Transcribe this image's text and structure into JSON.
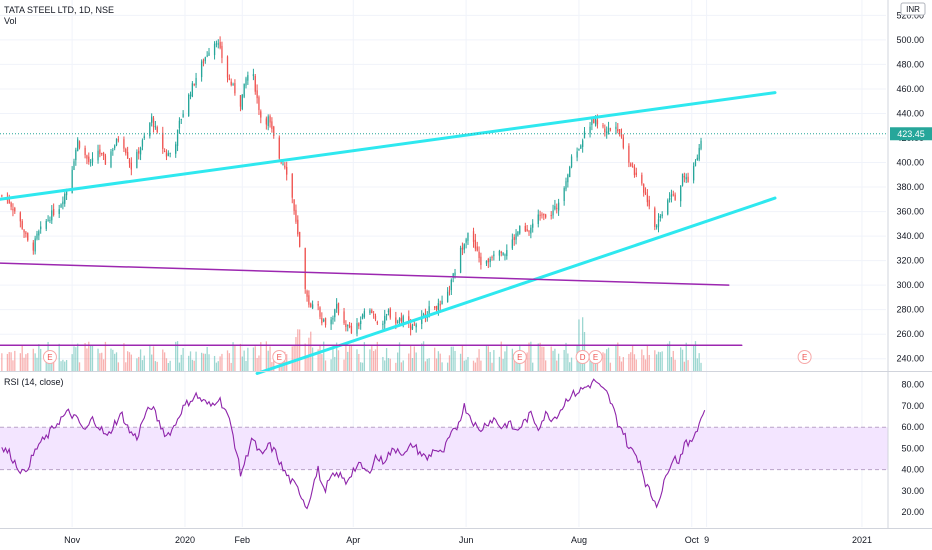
{
  "header": {
    "symbol_line": "TATA STEEL LTD, 1D, NSE",
    "vol_label": "Vol",
    "currency": "INR"
  },
  "rsi_panel": {
    "label": "RSI (14, close)"
  },
  "price_tag": "423.45",
  "earnings_marker": "E",
  "dividend_marker": "D",
  "colors": {
    "up": "#26a69a",
    "down": "#ef5350",
    "trendline_cyan": "#2ee8ef",
    "trendline_purple": "#9c27b0",
    "rsi_line": "#8e24aa",
    "rsi_band": "#f3e5ff",
    "grid": "#f0f3fa",
    "axis_text": "#131722"
  },
  "chart_data": [
    {
      "type": "candlestick",
      "title": "TATA STEEL LTD, 1D, NSE",
      "price_axis_ticks": [
        "520.00",
        "500.00",
        "480.00",
        "460.00",
        "440.00",
        "420.00",
        "400.00",
        "380.00",
        "360.00",
        "340.00",
        "320.00",
        "300.00",
        "280.00",
        "260.00",
        "240.00"
      ],
      "price_range": [
        230,
        526
      ],
      "time_axis_labels": [
        "Nov",
        "2020",
        "Feb",
        "Apr",
        "Jun",
        "Aug",
        "Oct",
        "9",
        "2021"
      ],
      "time_axis_anchor_days": [
        {
          "label": "Nov",
          "day": 0
        },
        {
          "label": "2020",
          "day": 61
        },
        {
          "label": "Feb",
          "day": 92
        },
        {
          "label": "Apr",
          "day": 152
        },
        {
          "label": "Jun",
          "day": 213
        },
        {
          "label": "Aug",
          "day": 274
        },
        {
          "label": "Oct",
          "day": 335
        },
        {
          "label": "9",
          "day": 343
        },
        {
          "label": "2021",
          "day": 427
        }
      ],
      "day_range": [
        -39,
        440
      ],
      "last_price": 423.45,
      "close_series": {
        "name": "close",
        "points": [
          [
            -38,
            373
          ],
          [
            -34,
            368
          ],
          [
            -30,
            358
          ],
          [
            -26,
            344
          ],
          [
            -22,
            326
          ],
          [
            -19,
            340
          ],
          [
            -15,
            350
          ],
          [
            -11,
            358
          ],
          [
            -7,
            364
          ],
          [
            -3,
            378
          ],
          [
            0,
            396
          ],
          [
            3,
            418
          ],
          [
            6,
            408
          ],
          [
            10,
            398
          ],
          [
            14,
            410
          ],
          [
            18,
            400
          ],
          [
            22,
            412
          ],
          [
            26,
            422
          ],
          [
            29,
            410
          ],
          [
            32,
            396
          ],
          [
            35,
            406
          ],
          [
            39,
            420
          ],
          [
            43,
            436
          ],
          [
            47,
            418
          ],
          [
            51,
            406
          ],
          [
            55,
            410
          ],
          [
            58,
            432
          ],
          [
            62,
            450
          ],
          [
            66,
            466
          ],
          [
            70,
            480
          ],
          [
            74,
            492
          ],
          [
            78,
            500
          ],
          [
            81,
            486
          ],
          [
            84,
            470
          ],
          [
            88,
            458
          ],
          [
            91,
            448
          ],
          [
            94,
            468
          ],
          [
            97,
            478
          ],
          [
            100,
            452
          ],
          [
            103,
            430
          ],
          [
            106,
            436
          ],
          [
            109,
            420
          ],
          [
            112,
            404
          ],
          [
            115,
            398
          ],
          [
            118,
            382
          ],
          [
            121,
            350
          ],
          [
            123,
            330
          ],
          [
            125,
            300
          ],
          [
            128,
            282
          ],
          [
            131,
            290
          ],
          [
            135,
            272
          ],
          [
            139,
            268
          ],
          [
            143,
            282
          ],
          [
            147,
            270
          ],
          [
            151,
            262
          ],
          [
            155,
            268
          ],
          [
            159,
            280
          ],
          [
            163,
            276
          ],
          [
            167,
            266
          ],
          [
            171,
            278
          ],
          [
            175,
            270
          ],
          [
            179,
            274
          ],
          [
            183,
            266
          ],
          [
            187,
            270
          ],
          [
            191,
            276
          ],
          [
            195,
            284
          ],
          [
            199,
            282
          ],
          [
            203,
            292
          ],
          [
            207,
            312
          ],
          [
            210,
            328
          ],
          [
            214,
            344
          ],
          [
            218,
            330
          ],
          [
            222,
            314
          ],
          [
            226,
            322
          ],
          [
            230,
            332
          ],
          [
            234,
            326
          ],
          [
            238,
            336
          ],
          [
            242,
            346
          ],
          [
            246,
            342
          ],
          [
            250,
            352
          ],
          [
            254,
            360
          ],
          [
            258,
            356
          ],
          [
            262,
            364
          ],
          [
            266,
            382
          ],
          [
            270,
            402
          ],
          [
            274,
            412
          ],
          [
            278,
            428
          ],
          [
            282,
            434
          ],
          [
            285,
            432
          ],
          [
            288,
            426
          ],
          [
            291,
            428
          ],
          [
            294,
            432
          ],
          [
            297,
            420
          ],
          [
            300,
            404
          ],
          [
            303,
            396
          ],
          [
            306,
            384
          ],
          [
            309,
            378
          ],
          [
            312,
            366
          ],
          [
            315,
            348
          ],
          [
            318,
            356
          ],
          [
            321,
            368
          ],
          [
            324,
            376
          ],
          [
            327,
            370
          ],
          [
            330,
            388
          ],
          [
            333,
            386
          ],
          [
            336,
            396
          ],
          [
            339,
            412
          ],
          [
            341,
            423.45
          ]
        ]
      },
      "trendlines": [
        {
          "color": "cyan",
          "from": [
            -39,
            370
          ],
          "to": [
            380,
            457
          ]
        },
        {
          "color": "cyan",
          "from": [
            100,
            228
          ],
          "to": [
            380,
            371
          ]
        },
        {
          "color": "purple",
          "from": [
            -39,
            318
          ],
          "to": [
            355,
            300
          ]
        },
        {
          "color": "purple",
          "from": [
            -39,
            251
          ],
          "to": [
            362,
            251
          ]
        }
      ],
      "earnings_events_days": [
        -12,
        112,
        242,
        283,
        396
      ],
      "dividend_events_days": [
        276
      ]
    },
    {
      "type": "line",
      "title": "RSI (14, close)",
      "ytick_labels": [
        "80.00",
        "70.00",
        "60.00",
        "50.00",
        "40.00",
        "30.00",
        "20.00"
      ],
      "ylim": [
        13,
        86
      ],
      "band": [
        40,
        60
      ],
      "rsi_series": {
        "name": "RSI",
        "points": [
          [
            -38,
            50
          ],
          [
            -34,
            48
          ],
          [
            -30,
            42
          ],
          [
            -26,
            38
          ],
          [
            -22,
            45
          ],
          [
            -18,
            52
          ],
          [
            -14,
            55
          ],
          [
            -10,
            60
          ],
          [
            -6,
            64
          ],
          [
            -2,
            67
          ],
          [
            1,
            65
          ],
          [
            4,
            62
          ],
          [
            7,
            58
          ],
          [
            11,
            64
          ],
          [
            15,
            60
          ],
          [
            19,
            55
          ],
          [
            23,
            62
          ],
          [
            27,
            66
          ],
          [
            31,
            58
          ],
          [
            35,
            55
          ],
          [
            39,
            65
          ],
          [
            43,
            70
          ],
          [
            47,
            62
          ],
          [
            51,
            56
          ],
          [
            55,
            60
          ],
          [
            59,
            68
          ],
          [
            63,
            72
          ],
          [
            67,
            75
          ],
          [
            71,
            72
          ],
          [
            75,
            70
          ],
          [
            79,
            74
          ],
          [
            83,
            68
          ],
          [
            86,
            60
          ],
          [
            89,
            48
          ],
          [
            91,
            38
          ],
          [
            94,
            45
          ],
          [
            97,
            55
          ],
          [
            100,
            50
          ],
          [
            103,
            46
          ],
          [
            106,
            52
          ],
          [
            110,
            48
          ],
          [
            114,
            40
          ],
          [
            118,
            35
          ],
          [
            121,
            32
          ],
          [
            124,
            28
          ],
          [
            127,
            22
          ],
          [
            130,
            32
          ],
          [
            133,
            40
          ],
          [
            136,
            30
          ],
          [
            140,
            36
          ],
          [
            144,
            38
          ],
          [
            148,
            34
          ],
          [
            152,
            40
          ],
          [
            156,
            42
          ],
          [
            160,
            38
          ],
          [
            164,
            46
          ],
          [
            168,
            44
          ],
          [
            172,
            48
          ],
          [
            176,
            50
          ],
          [
            180,
            47
          ],
          [
            184,
            52
          ],
          [
            188,
            48
          ],
          [
            192,
            45
          ],
          [
            196,
            50
          ],
          [
            200,
            47
          ],
          [
            204,
            55
          ],
          [
            208,
            60
          ],
          [
            212,
            70
          ],
          [
            216,
            64
          ],
          [
            220,
            58
          ],
          [
            224,
            62
          ],
          [
            228,
            64
          ],
          [
            232,
            60
          ],
          [
            236,
            62
          ],
          [
            240,
            58
          ],
          [
            244,
            62
          ],
          [
            248,
            66
          ],
          [
            252,
            60
          ],
          [
            256,
            66
          ],
          [
            260,
            64
          ],
          [
            264,
            68
          ],
          [
            268,
            74
          ],
          [
            272,
            76
          ],
          [
            276,
            78
          ],
          [
            280,
            80
          ],
          [
            283,
            82
          ],
          [
            286,
            78
          ],
          [
            289,
            76
          ],
          [
            292,
            70
          ],
          [
            295,
            62
          ],
          [
            298,
            58
          ],
          [
            301,
            50
          ],
          [
            304,
            48
          ],
          [
            307,
            44
          ],
          [
            310,
            34
          ],
          [
            313,
            28
          ],
          [
            316,
            24
          ],
          [
            319,
            30
          ],
          [
            322,
            40
          ],
          [
            325,
            46
          ],
          [
            328,
            44
          ],
          [
            331,
            52
          ],
          [
            334,
            52
          ],
          [
            337,
            58
          ],
          [
            340,
            64
          ],
          [
            342,
            68
          ]
        ]
      }
    }
  ]
}
